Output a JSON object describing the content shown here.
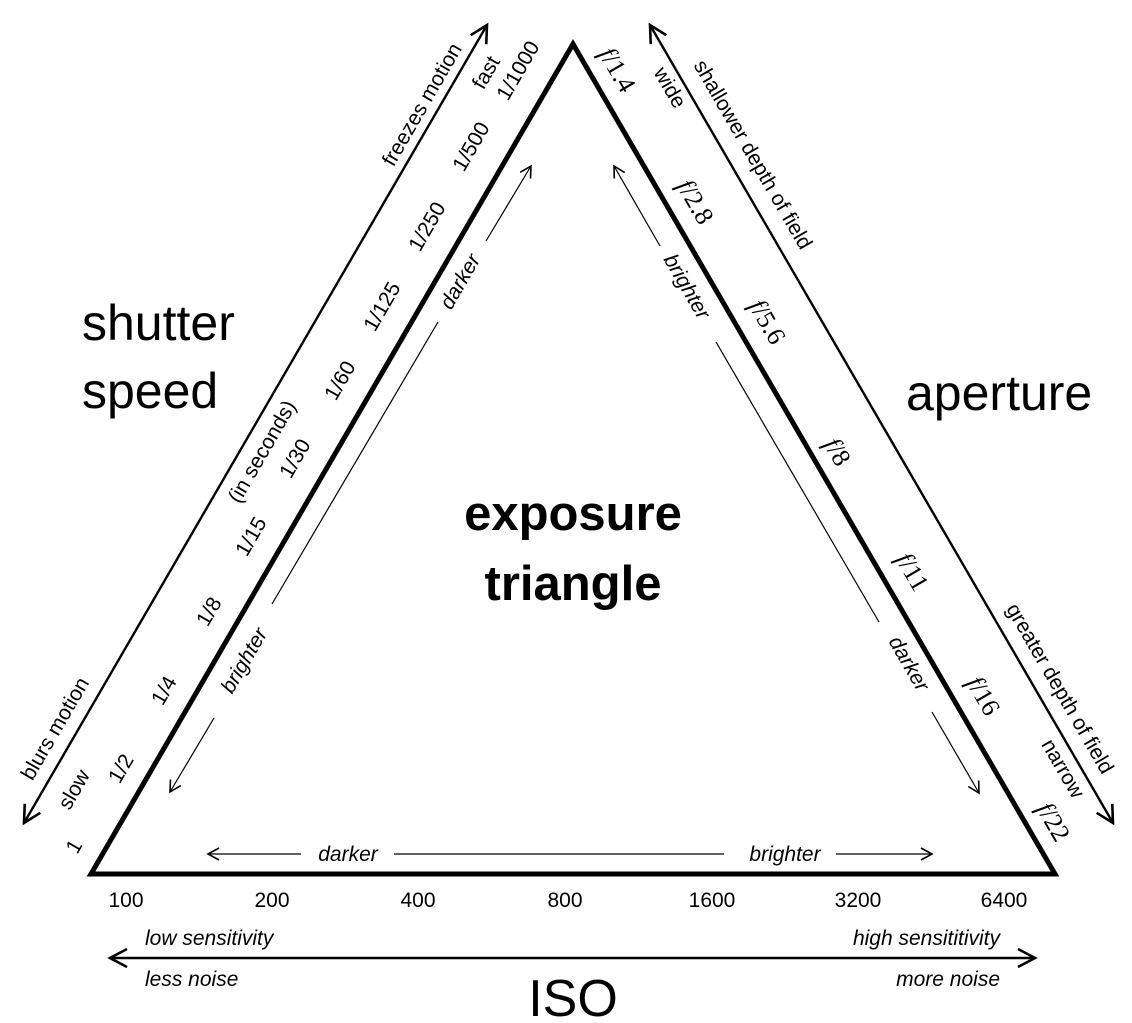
{
  "title": [
    "exposure",
    "triangle"
  ],
  "shutter": {
    "heading": [
      "shutter",
      "speed"
    ],
    "unit_note": "(in seconds)",
    "ticks": [
      "1",
      "1/2",
      "1/4",
      "1/8",
      "1/15",
      "1/30",
      "1/60",
      "1/125",
      "1/250",
      "1/500",
      "1/1000"
    ],
    "end_low": "slow",
    "end_high": "fast",
    "effect_low": "blurs motion",
    "effect_high": "freezes motion",
    "light_low": "brighter",
    "light_high": "darker"
  },
  "aperture": {
    "heading": "aperture",
    "f_prefix": "f",
    "stops": [
      "/1.4",
      "/2.8",
      "/5.6",
      "/8",
      "/11",
      "/16",
      "/22"
    ],
    "end_wide": "wide",
    "end_narrow": "narrow",
    "effect_wide": "shallower depth of field",
    "effect_narrow": "greater depth of field",
    "light_wide": "brighter",
    "light_narrow": "darker"
  },
  "iso": {
    "heading": "ISO",
    "values": [
      "100",
      "200",
      "400",
      "800",
      "1600",
      "3200",
      "6400"
    ],
    "light_low": "darker",
    "light_high": "brighter",
    "low_sensitivity": "low sensitivity",
    "high_sensitivity": "high sensititivity",
    "less_noise": "less noise",
    "more_noise": "more noise"
  }
}
